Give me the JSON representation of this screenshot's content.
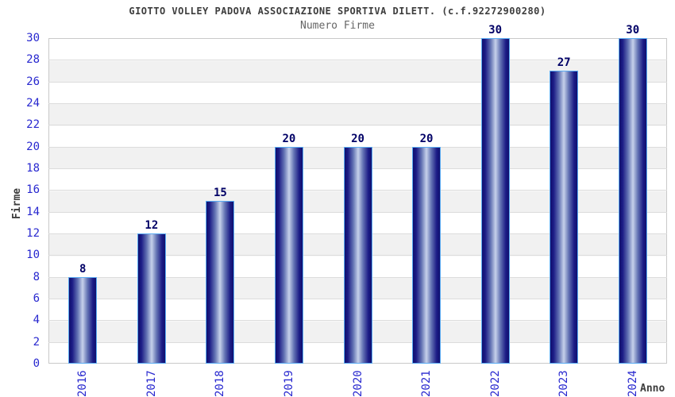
{
  "chart_data": {
    "type": "bar",
    "title": "GIOTTO VOLLEY PADOVA ASSOCIAZIONE SPORTIVA DILETT. (c.f.92272900280)",
    "subtitle": "Numero Firme",
    "xlabel": "Anno",
    "ylabel": "Firme",
    "categories": [
      "2016",
      "2017",
      "2018",
      "2019",
      "2020",
      "2021",
      "2022",
      "2023",
      "2024"
    ],
    "values": [
      8,
      12,
      15,
      20,
      20,
      20,
      30,
      27,
      30
    ],
    "ylim": [
      0,
      30
    ],
    "ytick_step": 2,
    "grid": true,
    "legend_position": "none",
    "layout_hints": {
      "bar_value_labels": "above bars",
      "x_tick_rotation": -90,
      "background_bands": "alternating 2-unit horizontal stripes"
    }
  },
  "colors": {
    "background": "#ffffff",
    "title": "#3d3d3d",
    "subtitle": "#666666",
    "axis_title": "#3d3d3d",
    "tick_label": "#2828cf",
    "value_label": "#000066",
    "bar_edge": "#10106e",
    "bar_mid": "#1c1c86",
    "bar_center": "#c6d1ea",
    "bar_border": "#5aabf2",
    "band": "#f1f1f1",
    "gridline": "#dcdcdc",
    "plot_border": "#c9c9c9"
  }
}
